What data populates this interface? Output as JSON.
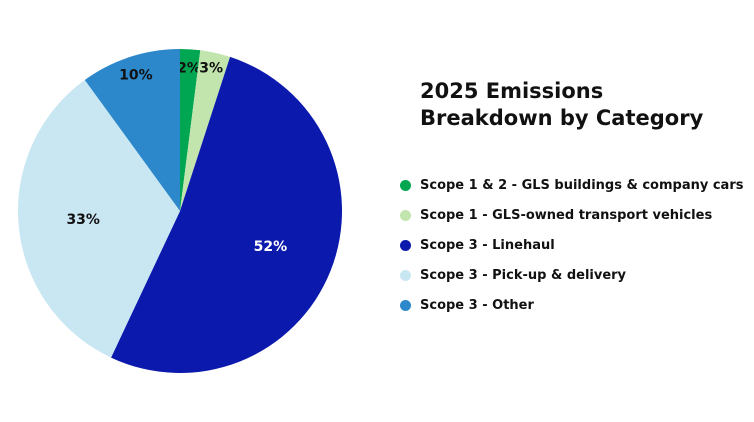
{
  "chart_data": {
    "type": "pie",
    "title": "2025 Emissions Breakdown by Category",
    "start_angle_deg": 0,
    "direction": "clockwise",
    "slices": [
      {
        "name": "Scope 1 & 2 - GLS buildings & company cars",
        "value": 2,
        "label": "2%",
        "color": "#00A651",
        "label_color": "#111111"
      },
      {
        "name": "Scope 1 - GLS-owned transport vehicles",
        "value": 3,
        "label": "3%",
        "color": "#C2E5AE",
        "label_color": "#111111"
      },
      {
        "name": "Scope 3 - Linehaul",
        "value": 52,
        "label": "52%",
        "color": "#0B1AAC",
        "label_color": "#ffffff"
      },
      {
        "name": "Scope 3 - Pick-up & delivery",
        "value": 33,
        "label": "33%",
        "color": "#C9E7F3",
        "label_color": "#111111"
      },
      {
        "name": "Scope 3 - Other",
        "value": 10,
        "label": "10%",
        "color": "#2C88CB",
        "label_color": "#111111"
      }
    ],
    "legend": {
      "position": "right",
      "entries": [
        "Scope 1 & 2 - GLS buildings & company cars",
        "Scope 1 - GLS-owned transport vehicles",
        "Scope 3 - Linehaul",
        "Scope 3 - Pick-up & delivery",
        "Scope 3 - Other"
      ]
    }
  }
}
